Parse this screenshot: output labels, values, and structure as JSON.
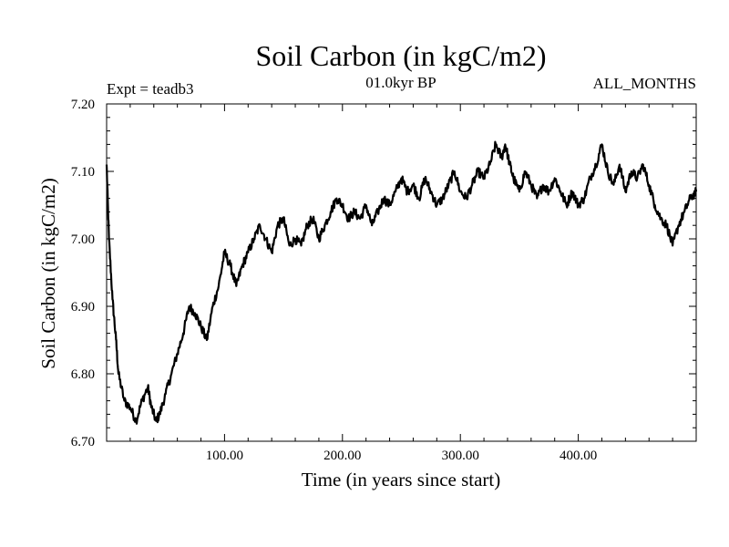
{
  "chart_data": {
    "type": "line",
    "title": "Soil Carbon (in kgC/m2)",
    "subtitle": "01.0kyr BP",
    "experiment": "Expt = teadb3",
    "period": "ALL_MONTHS",
    "xlabel": "Time (in years since start)",
    "ylabel": "Soil Carbon (in kgC/m2)",
    "xlim": [
      0,
      500
    ],
    "ylim": [
      6.7,
      7.2
    ],
    "x_ticks": [
      100,
      200,
      300,
      400
    ],
    "x_tick_labels": [
      "100.00",
      "200.00",
      "300.00",
      "400.00"
    ],
    "y_ticks": [
      6.7,
      6.8,
      6.9,
      7.0,
      7.1,
      7.2
    ],
    "y_tick_labels": [
      "6.70",
      "6.80",
      "6.90",
      "7.00",
      "7.10",
      "7.20"
    ],
    "grid": false,
    "series": [
      {
        "name": "Soil Carbon",
        "x": [
          0,
          2,
          5,
          8,
          10,
          15,
          20,
          25,
          30,
          35,
          38,
          42,
          45,
          50,
          55,
          60,
          65,
          70,
          75,
          80,
          85,
          90,
          95,
          100,
          105,
          110,
          115,
          120,
          125,
          130,
          135,
          140,
          145,
          150,
          155,
          160,
          165,
          170,
          175,
          180,
          185,
          190,
          195,
          200,
          205,
          210,
          215,
          220,
          225,
          230,
          235,
          240,
          245,
          250,
          255,
          260,
          265,
          270,
          275,
          280,
          285,
          290,
          295,
          300,
          305,
          310,
          315,
          320,
          325,
          330,
          335,
          338,
          342,
          345,
          350,
          355,
          360,
          365,
          370,
          375,
          380,
          385,
          390,
          395,
          400,
          405,
          410,
          415,
          420,
          425,
          430,
          435,
          440,
          445,
          450,
          455,
          460,
          465,
          470,
          475,
          480,
          485,
          490,
          495,
          500
        ],
        "values": [
          7.11,
          7.0,
          6.91,
          6.85,
          6.8,
          6.76,
          6.75,
          6.73,
          6.76,
          6.78,
          6.75,
          6.73,
          6.74,
          6.77,
          6.8,
          6.83,
          6.86,
          6.9,
          6.89,
          6.87,
          6.85,
          6.9,
          6.93,
          6.98,
          6.96,
          6.93,
          6.96,
          6.98,
          7.0,
          7.02,
          7.0,
          6.98,
          7.02,
          7.03,
          6.99,
          7.0,
          6.99,
          7.02,
          7.03,
          7.0,
          7.02,
          7.04,
          7.06,
          7.05,
          7.03,
          7.04,
          7.03,
          7.05,
          7.02,
          7.04,
          7.06,
          7.05,
          7.07,
          7.09,
          7.07,
          7.08,
          7.06,
          7.09,
          7.07,
          7.05,
          7.06,
          7.08,
          7.1,
          7.07,
          7.06,
          7.08,
          7.1,
          7.09,
          7.11,
          7.14,
          7.12,
          7.14,
          7.11,
          7.09,
          7.07,
          7.1,
          7.08,
          7.06,
          7.08,
          7.07,
          7.09,
          7.07,
          7.05,
          7.07,
          7.05,
          7.06,
          7.09,
          7.11,
          7.14,
          7.1,
          7.08,
          7.11,
          7.07,
          7.1,
          7.09,
          7.11,
          7.08,
          7.05,
          7.03,
          7.02,
          6.99,
          7.02,
          7.04,
          7.06,
          7.07
        ]
      }
    ]
  }
}
